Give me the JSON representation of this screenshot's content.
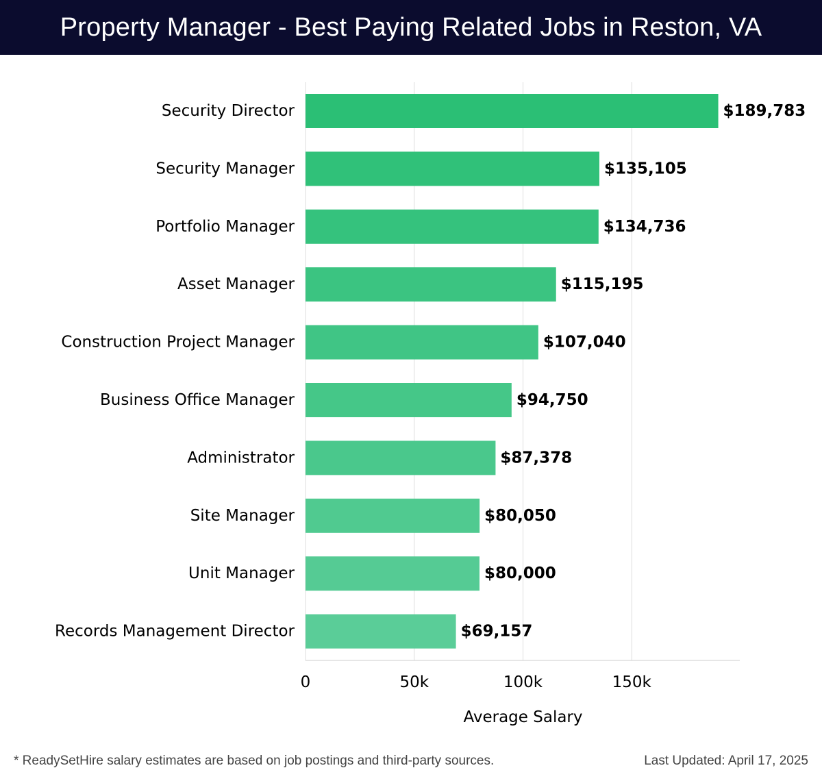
{
  "header": {
    "title": "Property Manager - Best Paying Related Jobs in Reston, VA"
  },
  "colors": {
    "header_bg": "#0b0c2e",
    "header_text": "#ffffff",
    "bar_start": "#2bbf75",
    "bar_end": "#5acd98",
    "grid": "#dddddd"
  },
  "chart_data": {
    "type": "bar",
    "orientation": "horizontal",
    "categories": [
      "Security Director",
      "Security Manager",
      "Portfolio Manager",
      "Asset Manager",
      "Construction Project Manager",
      "Business Office Manager",
      "Administrator",
      "Site Manager",
      "Unit Manager",
      "Records Management Director"
    ],
    "values": [
      189783,
      135105,
      134736,
      115195,
      107040,
      94750,
      87378,
      80050,
      80000,
      69157
    ],
    "value_labels": [
      "$189,783",
      "$135,105",
      "$134,736",
      "$115,195",
      "$107,040",
      "$94,750",
      "$87,378",
      "$80,050",
      "$80,000",
      "$69,157"
    ],
    "xlabel": "Average Salary",
    "xlim": [
      0,
      200000
    ],
    "xticks": [
      0,
      50000,
      100000,
      150000
    ],
    "xtick_labels": [
      "0",
      "50k",
      "100k",
      "150k"
    ],
    "grid": "vertical"
  },
  "footer": {
    "note": "* ReadySetHire salary estimates are based on job postings and third-party sources.",
    "updated": "Last Updated: April 17, 2025"
  }
}
